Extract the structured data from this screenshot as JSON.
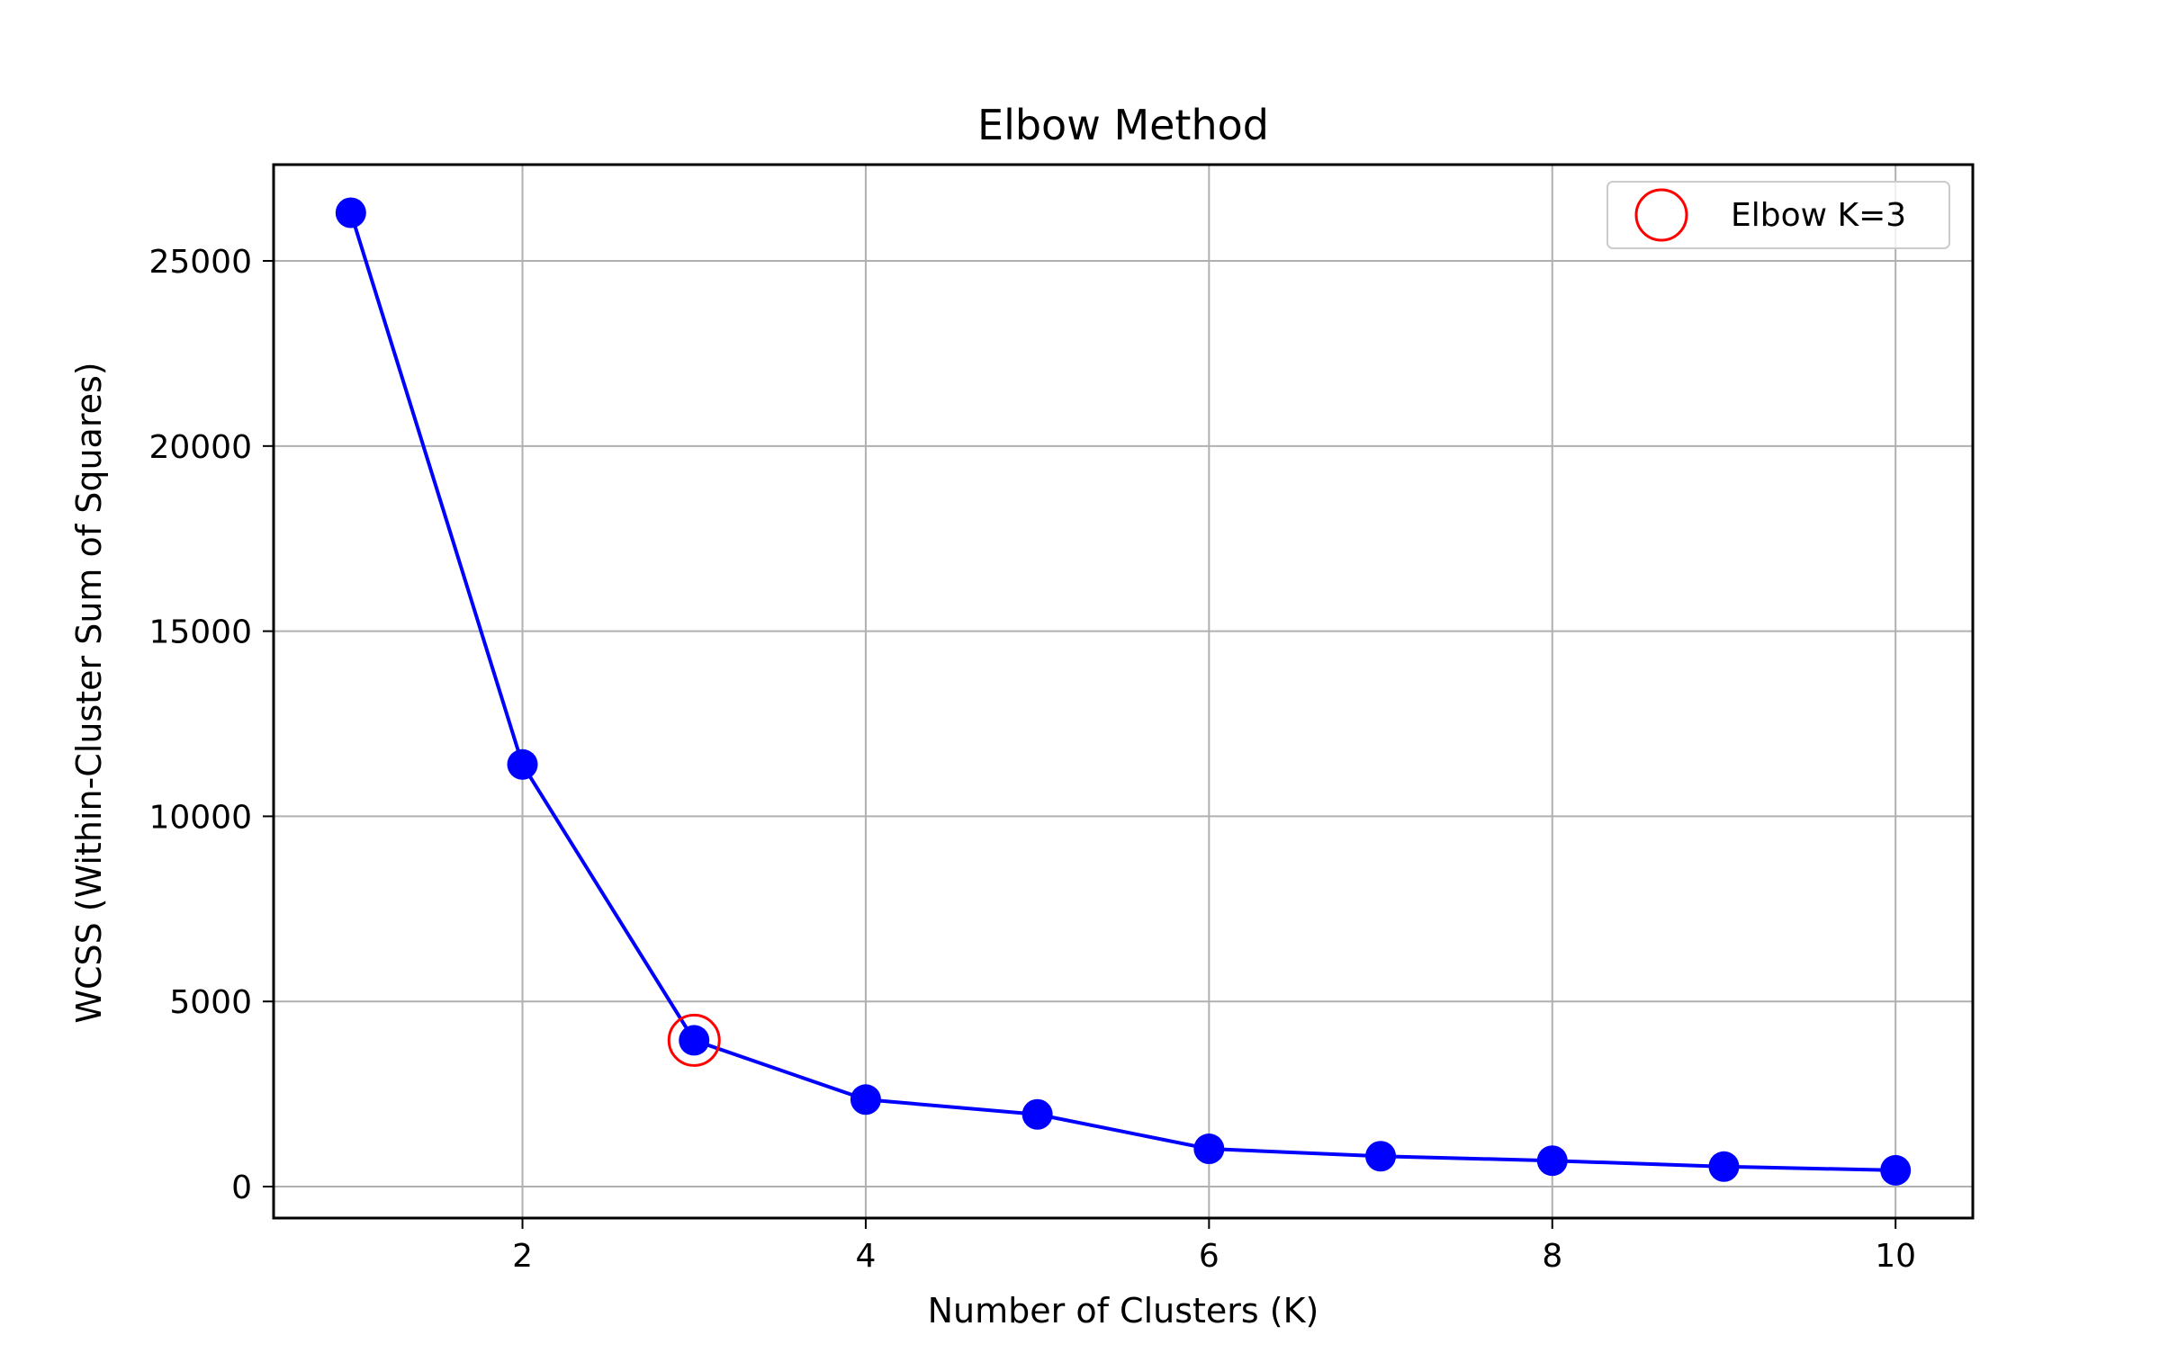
{
  "chart_data": {
    "type": "line",
    "title": "Elbow Method",
    "xlabel": "Number of Clusters (K)",
    "ylabel": "WCSS (Within-Cluster Sum of Squares)",
    "x": [
      1,
      2,
      3,
      4,
      5,
      6,
      7,
      8,
      9,
      10
    ],
    "series": [
      {
        "values": [
          26300,
          11400,
          3950,
          2350,
          1950,
          1020,
          820,
          700,
          540,
          440
        ],
        "color": "#0000ff",
        "marker": "circle"
      }
    ],
    "highlight": {
      "label": "Elbow K=3",
      "x": 3,
      "y": 3950,
      "color": "#ff0000",
      "marker": "open-circle"
    },
    "xticks": [
      2,
      4,
      6,
      8,
      10
    ],
    "yticks": [
      0,
      5000,
      10000,
      15000,
      20000,
      25000
    ],
    "xlim": [
      0.55,
      10.45
    ],
    "ylim": [
      -850,
      27600
    ],
    "grid": true,
    "legend_position": "top-right",
    "colors": {
      "line": "#0000ff",
      "highlight": "#ff0000",
      "grid": "#b0b0b0",
      "axes": "#000000"
    }
  }
}
